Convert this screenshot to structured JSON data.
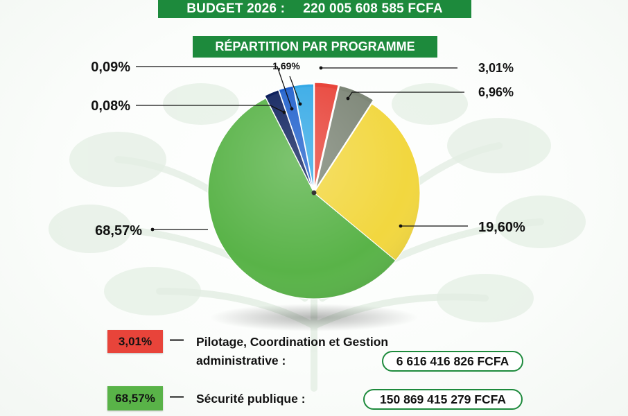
{
  "header": {
    "budget_label": "BUDGET 2026 :",
    "budget_amount": "220 005 608 585 FCFA",
    "subtitle": "RÉPARTITION PAR PROGRAMME"
  },
  "colors": {
    "banner_green": "#1d8a3c",
    "red": "#e8443a",
    "gray": "#7d8677",
    "yellow": "#f2d73f",
    "green": "#59b348",
    "dark_navy": "#0c1f5c",
    "blue": "#1e5fcc",
    "light_blue": "#34a9e6"
  },
  "chart_data": {
    "type": "pie",
    "title": "RÉPARTITION PAR PROGRAMME",
    "legend_placement": "bottom",
    "slices": [
      {
        "label": "3,01%",
        "value": 3.01,
        "color": "#e8443a"
      },
      {
        "label": "6,96%",
        "value": 6.96,
        "color": "#7d8677"
      },
      {
        "label": "19,60%",
        "value": 19.6,
        "color": "#f2d73f"
      },
      {
        "label": "68,57%",
        "value": 68.57,
        "color": "#59b348"
      },
      {
        "label": "0,08%",
        "value": 0.08,
        "color": "#0c1f5c"
      },
      {
        "label": "0,09%",
        "value": 0.09,
        "color": "#1e5fcc"
      },
      {
        "label": "1,69%",
        "value": 1.69,
        "color": "#34a9e6"
      }
    ]
  },
  "legend": [
    {
      "pct": "3,01%",
      "color": "#e8443a",
      "dash": "—",
      "name_line1": "Pilotage, Coordination et Gestion",
      "name_line2": "administrative :",
      "amount": "6 616 416 826 FCFA"
    },
    {
      "pct": "68,57%",
      "color": "#59b348",
      "dash": "—",
      "name_line1": "Sécurité publique :",
      "amount": "150 869 415 279 FCFA"
    }
  ]
}
